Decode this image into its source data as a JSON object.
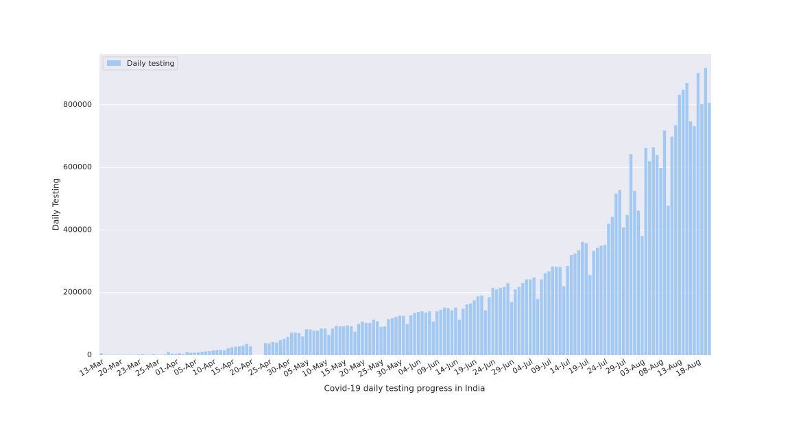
{
  "chart_data": {
    "type": "bar",
    "xlabel": "Covid-19 daily testing progress in India",
    "ylabel": "Daily Testing",
    "legend": "upper left",
    "grid": true,
    "ylim": [
      0,
      962000
    ],
    "yticks": [
      0,
      200000,
      400000,
      600000,
      800000
    ],
    "categories": [
      "13-Mar",
      null,
      null,
      null,
      null,
      "20-Mar",
      null,
      null,
      null,
      null,
      "23-Mar",
      null,
      null,
      null,
      null,
      "25-Mar",
      null,
      null,
      null,
      null,
      "01-Apr",
      null,
      null,
      null,
      null,
      "05-Apr",
      null,
      null,
      null,
      null,
      "10-Apr",
      null,
      null,
      null,
      null,
      "15-Apr",
      null,
      null,
      null,
      null,
      "20-Apr",
      null,
      null,
      null,
      null,
      "25-Apr",
      null,
      null,
      null,
      null,
      "30-Apr",
      null,
      null,
      null,
      null,
      "05-May",
      null,
      null,
      null,
      null,
      "10-May",
      null,
      null,
      null,
      null,
      "15-May",
      null,
      null,
      null,
      null,
      "20-May",
      null,
      null,
      null,
      null,
      "25-May",
      null,
      null,
      null,
      null,
      "30-May",
      null,
      null,
      null,
      null,
      "04-Jun",
      null,
      null,
      null,
      null,
      "09-Jun",
      null,
      null,
      null,
      null,
      "14-Jun",
      null,
      null,
      null,
      null,
      "19-Jun",
      null,
      null,
      null,
      null,
      "24-Jun",
      null,
      null,
      null,
      null,
      "29-Jun",
      null,
      null,
      null,
      null,
      "04-Jul",
      null,
      null,
      null,
      null,
      "09-Jul",
      null,
      null,
      null,
      null,
      "14-Jul",
      null,
      null,
      null,
      null,
      "19-Jul",
      null,
      null,
      null,
      null,
      "24-Jul",
      null,
      null,
      null,
      null,
      "29-Jul",
      null,
      null,
      null,
      null,
      "03-Aug",
      null,
      null,
      null,
      null,
      "08-Aug",
      null,
      null,
      null,
      null,
      "13-Aug",
      null,
      null,
      null,
      null,
      "18-Aug",
      null,
      null,
      null
    ],
    "series": [
      {
        "name": "Daily testing",
        "color": "#a1c9f4",
        "values": [
          6000,
          1000,
          1000,
          1000,
          1000,
          1000,
          1000,
          1000,
          1000,
          1000,
          2000,
          3000,
          1000,
          1000,
          3000,
          1000,
          1000,
          2000,
          10000,
          5000,
          4000,
          6000,
          3000,
          10000,
          8000,
          8000,
          9000,
          11000,
          12000,
          13000,
          15000,
          16000,
          17000,
          15000,
          22000,
          25000,
          27000,
          28000,
          30000,
          36000,
          28000,
          null,
          null,
          null,
          38000,
          37000,
          42000,
          40000,
          48000,
          52000,
          58000,
          72000,
          72000,
          70000,
          60000,
          83000,
          82000,
          78000,
          78000,
          85000,
          85000,
          65000,
          85000,
          93000,
          92000,
          92000,
          95000,
          92000,
          75000,
          100000,
          107000,
          103000,
          103000,
          113000,
          108000,
          90000,
          92000,
          115000,
          118000,
          122000,
          126000,
          125000,
          100000,
          127000,
          135000,
          138000,
          140000,
          136000,
          140000,
          107000,
          140000,
          145000,
          152000,
          150000,
          143000,
          152000,
          113000,
          148000,
          162000,
          165000,
          175000,
          188000,
          190000,
          143000,
          185000,
          215000,
          210000,
          215000,
          218000,
          230000,
          170000,
          210000,
          218000,
          230000,
          242000,
          242000,
          248000,
          180000,
          242000,
          262000,
          268000,
          283000,
          283000,
          282000,
          220000,
          285000,
          320000,
          325000,
          335000,
          362000,
          358000,
          256000,
          333000,
          343000,
          350000,
          352000,
          420000,
          442000,
          516000,
          528000,
          408000,
          448000,
          642000,
          525000,
          462000,
          381000,
          662000,
          620000,
          664000,
          640000,
          598000,
          718000,
          478000,
          698000,
          735000,
          832000,
          848000,
          870000,
          747000,
          732000,
          902000,
          802000,
          918000,
          806000
        ]
      }
    ]
  }
}
